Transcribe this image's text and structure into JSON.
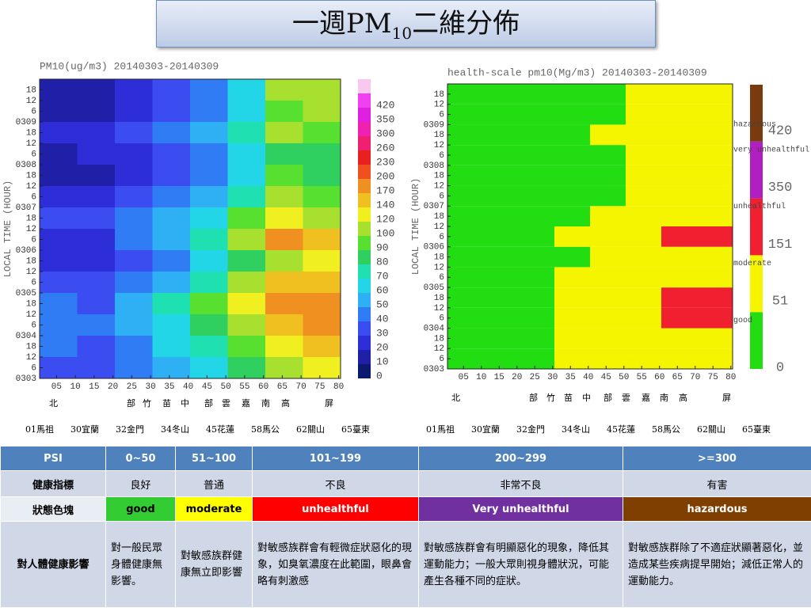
{
  "title": [
    "一週PM",
    "10",
    "二維分佈"
  ],
  "chart_data": [
    {
      "type": "heatmap",
      "title": "PM10(ug/m3) 20140303-20140309",
      "ylabel": "LOCAL TIME (HOUR)",
      "ylabels": [
        "0303",
        "6",
        "12",
        "18",
        "0304",
        "6",
        "12",
        "18",
        "0305",
        "6",
        "12",
        "18",
        "0306",
        "6",
        "12",
        "18",
        "0307",
        "6",
        "12",
        "18",
        "0308",
        "6",
        "12",
        "18",
        "0309",
        "6",
        "12",
        "18"
      ],
      "xlim": [
        0.5,
        80.5
      ],
      "xticks": [
        {
          "value": 5,
          "label": "05"
        },
        10,
        15,
        20,
        25,
        30,
        35,
        40,
        45,
        50,
        55,
        60,
        65,
        70,
        75,
        80
      ],
      "xbins": [
        0.5,
        10.5,
        20.5,
        30.5,
        40.5,
        50.5,
        60.5,
        70.5,
        80.5
      ],
      "z": [
        [
          35,
          30,
          40,
          55,
          60,
          80,
          110,
          120
        ],
        [
          40,
          35,
          45,
          60,
          70,
          90,
          130,
          150
        ],
        [
          45,
          40,
          50,
          65,
          80,
          110,
          160,
          180
        ],
        [
          40,
          35,
          50,
          70,
          90,
          120,
          170,
          190
        ],
        [
          30,
          30,
          40,
          55,
          70,
          100,
          140,
          150
        ],
        [
          20,
          20,
          30,
          45,
          60,
          80,
          110,
          120
        ],
        [
          25,
          25,
          40,
          55,
          70,
          110,
          170,
          160
        ],
        [
          30,
          30,
          40,
          50,
          60,
          90,
          120,
          110
        ],
        [
          20,
          20,
          30,
          40,
          50,
          70,
          100,
          90
        ],
        [
          15,
          15,
          25,
          35,
          45,
          65,
          90,
          85
        ],
        [
          15,
          20,
          25,
          35,
          45,
          60,
          85,
          80
        ],
        [
          20,
          20,
          30,
          40,
          55,
          70,
          100,
          95
        ],
        [
          15,
          15,
          25,
          35,
          45,
          65,
          95,
          100
        ],
        [
          10,
          15,
          20,
          30,
          40,
          60,
          100,
          110
        ]
      ],
      "colorbar": {
        "levels": [
          0,
          10,
          20,
          30,
          40,
          50,
          60,
          70,
          80,
          90,
          100,
          120,
          140,
          170,
          200,
          230,
          260,
          300,
          350,
          420
        ],
        "colors": [
          "#0a1a6e",
          "#1f1fa8",
          "#2e2ed8",
          "#3b4cf0",
          "#2f7cf5",
          "#2fb0f5",
          "#22d6e8",
          "#1fe0b0",
          "#30d060",
          "#58e030",
          "#a8e030",
          "#f0f020",
          "#f0c020",
          "#f09020",
          "#f05020",
          "#e82020",
          "#f02070",
          "#f020b0",
          "#e020e0",
          "#f040f0",
          "#f8c8f0"
        ]
      }
    },
    {
      "type": "heatmap",
      "title": "health-scale pm10(Mg/m3) 20140303-20140309",
      "ylabel": "LOCAL TIME (HOUR)",
      "ylabels": [
        "0303",
        "6",
        "12",
        "18",
        "0304",
        "6",
        "12",
        "18",
        "0305",
        "6",
        "12",
        "18",
        "0306",
        "6",
        "12",
        "18",
        "0307",
        "6",
        "12",
        "18",
        "0308",
        "6",
        "12",
        "18",
        "0309",
        "6",
        "12",
        "18"
      ],
      "xlim": [
        0.5,
        80.5
      ],
      "xticks": [
        {
          "value": 5,
          "label": "05"
        },
        10,
        15,
        20,
        25,
        30,
        35,
        40,
        45,
        50,
        55,
        60,
        65,
        70,
        75,
        80
      ],
      "xbins": [
        0.5,
        10.5,
        20.5,
        30.5,
        40.5,
        50.5,
        60.5,
        70.5,
        80.5
      ],
      "z": [
        [
          35,
          30,
          40,
          55,
          60,
          80,
          110,
          120
        ],
        [
          40,
          35,
          45,
          60,
          70,
          90,
          130,
          150
        ],
        [
          45,
          40,
          50,
          65,
          80,
          110,
          160,
          180
        ],
        [
          40,
          35,
          50,
          70,
          90,
          120,
          170,
          190
        ],
        [
          30,
          30,
          40,
          55,
          70,
          100,
          140,
          150
        ],
        [
          20,
          20,
          30,
          45,
          60,
          80,
          110,
          120
        ],
        [
          25,
          25,
          40,
          55,
          70,
          110,
          170,
          160
        ],
        [
          30,
          30,
          40,
          50,
          60,
          90,
          120,
          110
        ],
        [
          20,
          20,
          30,
          40,
          50,
          70,
          100,
          90
        ],
        [
          15,
          15,
          25,
          35,
          45,
          65,
          90,
          85
        ],
        [
          15,
          20,
          25,
          35,
          45,
          60,
          85,
          80
        ],
        [
          20,
          20,
          30,
          40,
          55,
          70,
          100,
          95
        ],
        [
          15,
          15,
          25,
          35,
          45,
          65,
          95,
          100
        ],
        [
          10,
          15,
          20,
          30,
          40,
          60,
          100,
          110
        ]
      ],
      "colorbar": {
        "levels": [
          0,
          51,
          151,
          350,
          420
        ],
        "colors": [
          "#22dd11",
          "#f5f500",
          "#f02030",
          "#b020c0",
          "#7a3a10"
        ],
        "names": [
          "good",
          "moderate",
          "unhealthful",
          "very unhealthful",
          "hazardous"
        ]
      }
    }
  ],
  "regions": [
    "北",
    "部",
    "竹",
    "苗",
    "中",
    "部",
    "雲",
    "嘉",
    "南",
    "高",
    "屏"
  ],
  "stations": [
    "01馬祖",
    "30宜蘭",
    "32金門",
    "34冬山",
    "45花蓮",
    "58馬公",
    "62關山",
    "65臺東"
  ],
  "table": {
    "header": [
      "PSI",
      "0~50",
      "51~100",
      "101~199",
      "200~299",
      ">=300"
    ],
    "rows": [
      [
        "健康指標",
        "良好",
        "普通",
        "不良",
        "非常不良",
        "有害"
      ],
      [
        "狀態色塊",
        "good",
        "moderate",
        "unhealthful",
        "Very unhealthful",
        "hazardous"
      ],
      [
        "對人體健康影響",
        "對一般民眾身體健康無影響。",
        "對敏感族群健康無立即影響",
        "對敏感族群會有輕微症狀惡化的現象，如臭氧濃度在此範圍，眼鼻會略有刺激感",
        "對敏感族群會有明顯惡化的現象，降低其運動能力；一般大眾則視身體狀況，可能產生各種不同的症狀。",
        "對敏感族群除了不適症狀顯著惡化，並造成某些疾病提早開始；減低正常人的運動能力。"
      ]
    ],
    "state_colors": [
      "#33cc33",
      "#ffff00",
      "#ff0000",
      "#7030a0",
      "#7f3f00"
    ]
  }
}
